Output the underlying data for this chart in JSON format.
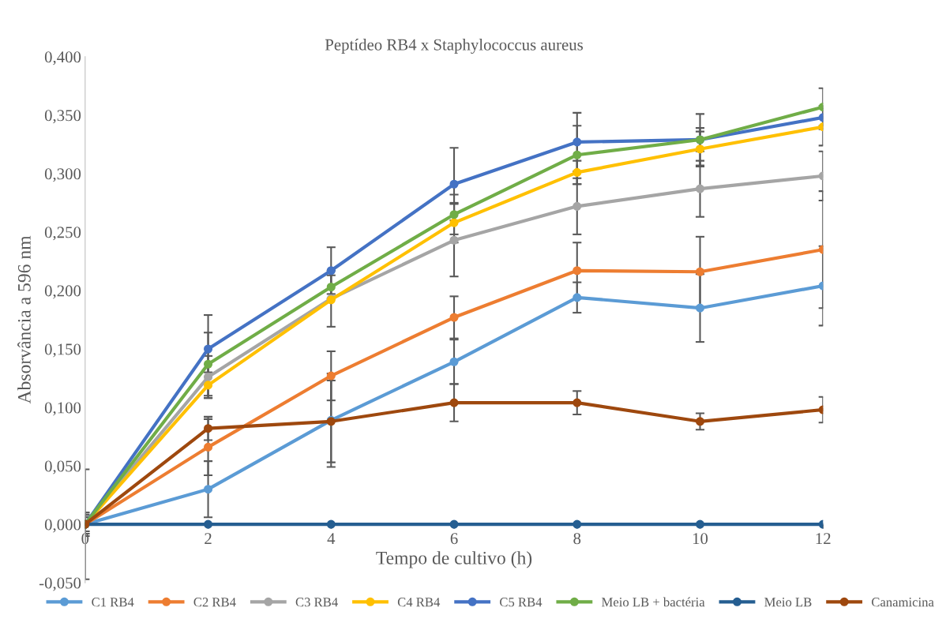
{
  "chart_data": {
    "type": "line",
    "title": "Peptídeo RB4 x Staphylococcus aureus",
    "xlabel": "Tempo de cultivo (h)",
    "ylabel": "Absorvância a 596 nm",
    "x": [
      0,
      2,
      4,
      6,
      8,
      10,
      12
    ],
    "series": [
      {
        "name": "C1 RB4",
        "color": "#5b9bd5",
        "values": [
          0,
          0.03,
          0.089,
          0.139,
          0.194,
          0.185,
          0.204
        ],
        "errors": [
          0.047,
          0.024,
          0.04,
          0.019,
          0.013,
          0.029,
          0.034
        ]
      },
      {
        "name": "C2 RB4",
        "color": "#ed7d31",
        "values": [
          0,
          0.066,
          0.127,
          0.177,
          0.217,
          0.216,
          0.235
        ],
        "errors": [
          0.01,
          0.024,
          0.021,
          0.018,
          0.024,
          0.03,
          0.05
        ]
      },
      {
        "name": "C3 RB4",
        "color": "#a5a5a5",
        "values": [
          0,
          0.126,
          0.193,
          0.243,
          0.272,
          0.287,
          0.298
        ],
        "errors": [
          0.01,
          0.018,
          0.024,
          0.031,
          0.024,
          0.024,
          0.021
        ]
      },
      {
        "name": "C4 RB4",
        "color": "#ffc000",
        "values": [
          0,
          0.119,
          0.192,
          0.258,
          0.301,
          0.321,
          0.34
        ],
        "errors": [
          0.008,
          0.011,
          null,
          0.017,
          0.01,
          0.015,
          0.016
        ]
      },
      {
        "name": "C5 RB4",
        "color": "#4472c4",
        "values": [
          0,
          0.15,
          0.217,
          0.291,
          0.327,
          0.329,
          0.348
        ],
        "errors": [
          0.008,
          0.029,
          0.02,
          0.031,
          0.025,
          0.022,
          0.01
        ]
      },
      {
        "name": "Meio LB + bactéria",
        "color": "#70ad47",
        "values": [
          0,
          0.137,
          0.203,
          0.265,
          0.316,
          0.329,
          0.357
        ],
        "errors": [
          0.006,
          0.027,
          0.01,
          0.017,
          0.025,
          0.01,
          0.016
        ]
      },
      {
        "name": "Meio LB",
        "color": "#255e91",
        "values": [
          0,
          0,
          0,
          0,
          0,
          0,
          0
        ]
      },
      {
        "name": "Canamicina",
        "color": "#9e480e",
        "values": [
          0,
          0.082,
          0.088,
          0.104,
          0.104,
          0.088,
          0.098
        ],
        "errors": [
          0.006,
          0.01,
          0.035,
          0.016,
          0.01,
          0.007,
          0.011
        ]
      }
    ],
    "xlim": [
      0,
      12
    ],
    "xticks": [
      0,
      2,
      4,
      6,
      8,
      10,
      12
    ],
    "ylim": [
      -0.05,
      0.4
    ],
    "yticks": [
      {
        "value": -0.05,
        "label": "-0,050"
      },
      {
        "value": 0,
        "label": "0,000"
      },
      {
        "value": 0.05,
        "label": "0,050"
      },
      {
        "value": 0.1,
        "label": "0,100"
      },
      {
        "value": 0.15,
        "label": "0,150"
      },
      {
        "value": 0.2,
        "label": "0,200"
      },
      {
        "value": 0.25,
        "label": "0,250"
      },
      {
        "value": 0.3,
        "label": "0,300"
      },
      {
        "value": 0.35,
        "label": "0,350"
      },
      {
        "value": 0.4,
        "label": "0,400"
      }
    ],
    "grid": false,
    "legend": "bottom",
    "marker": "circle",
    "line_style": "solid"
  }
}
